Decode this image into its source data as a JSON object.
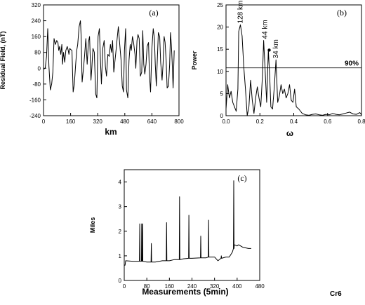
{
  "figure_label": "Cr6",
  "chart_data": [
    {
      "id": "a",
      "type": "line",
      "panel_label": "(a)",
      "xlabel": "km",
      "ylabel": "Residual Field, (nT)",
      "xlim": [
        0,
        800
      ],
      "ylim": [
        -240,
        320
      ],
      "xticks": [
        0,
        160,
        320,
        480,
        640,
        800
      ],
      "yticks": [
        -240,
        -160,
        -80,
        0,
        80,
        160,
        240,
        320
      ],
      "ytick_labels": [
        "-240",
        "-160",
        "-80",
        "0",
        "80",
        "160",
        "240",
        "320"
      ],
      "series": [
        {
          "x": [
            0,
            10,
            18,
            25,
            32,
            40,
            48,
            55,
            62,
            70,
            78,
            85,
            90,
            95,
            102,
            108,
            112,
            118,
            125,
            132,
            140,
            146,
            150,
            155,
            160,
            168,
            175,
            182,
            190,
            196,
            202,
            210,
            218,
            222,
            228,
            235,
            242,
            250,
            258,
            265,
            272,
            280,
            285,
            292,
            300,
            308,
            315,
            322,
            330,
            336,
            342,
            350,
            358,
            365,
            372,
            380,
            388,
            395,
            402,
            408,
            415,
            420,
            428,
            435,
            442,
            450,
            458,
            465,
            472,
            478,
            485,
            490,
            498,
            505,
            512,
            518,
            525,
            532,
            540,
            545,
            552,
            558,
            565,
            572,
            580,
            586,
            592,
            598,
            605,
            612,
            620,
            626,
            632,
            640,
            648,
            655,
            660,
            666,
            672,
            678,
            686,
            692,
            700,
            706,
            712,
            718,
            724,
            730,
            738,
            745,
            750,
            755,
            760,
            765,
            772
          ],
          "y": [
            -5,
            0,
            60,
            200,
            10,
            -110,
            -80,
            -20,
            150,
            120,
            140,
            130,
            90,
            110,
            70,
            120,
            20,
            80,
            30,
            90,
            110,
            90,
            70,
            100,
            95,
            90,
            -120,
            -80,
            20,
            90,
            120,
            210,
            240,
            160,
            -70,
            -10,
            60,
            150,
            20,
            130,
            160,
            -60,
            0,
            100,
            80,
            -130,
            -150,
            160,
            200,
            40,
            -80,
            100,
            140,
            10,
            -40,
            70,
            60,
            120,
            80,
            140,
            -20,
            20,
            90,
            150,
            210,
            120,
            40,
            -90,
            -120,
            90,
            200,
            -110,
            -150,
            40,
            120,
            90,
            160,
            130,
            70,
            0,
            140,
            170,
            150,
            -40,
            -20,
            190,
            20,
            -30,
            20,
            110,
            130,
            -40,
            -120,
            100,
            200,
            150,
            20,
            -90,
            40,
            180,
            160,
            30,
            -60,
            20,
            160,
            130,
            40,
            -100,
            -90,
            20,
            180,
            120,
            30,
            -100,
            90
          ]
        }
      ]
    },
    {
      "id": "b",
      "type": "line",
      "panel_label": "(b)",
      "xlabel": "ω",
      "ylabel": "Power",
      "xlim": [
        0,
        0.8
      ],
      "ylim": [
        0,
        25
      ],
      "xticks": [
        0,
        0.2,
        0.4,
        0.6,
        0.8
      ],
      "xtick_labels": [
        "0.0",
        "0.2",
        "0.4",
        "0.6",
        "0.8"
      ],
      "yticks": [
        0,
        5,
        10,
        15,
        20,
        25
      ],
      "threshold": {
        "value": 10.8,
        "label": "90%"
      },
      "annotations": [
        {
          "x": 0.085,
          "y": 20.5,
          "text": "128 km"
        },
        {
          "x": 0.23,
          "y": 17.0,
          "text": "44 km"
        },
        {
          "x": 0.295,
          "y": 12.6,
          "text": "34 km"
        }
      ],
      "marker": {
        "x": 0.255,
        "y": 14.8
      },
      "series": [
        {
          "x": [
            0.0,
            0.01,
            0.02,
            0.03,
            0.04,
            0.05,
            0.06,
            0.07,
            0.075,
            0.085,
            0.095,
            0.105,
            0.115,
            0.125,
            0.135,
            0.145,
            0.155,
            0.165,
            0.175,
            0.185,
            0.195,
            0.205,
            0.215,
            0.222,
            0.23,
            0.24,
            0.25,
            0.258,
            0.265,
            0.275,
            0.285,
            0.295,
            0.305,
            0.315,
            0.325,
            0.335,
            0.345,
            0.355,
            0.365,
            0.375,
            0.385,
            0.395,
            0.405,
            0.415,
            0.43,
            0.45,
            0.47,
            0.49,
            0.51,
            0.53,
            0.55,
            0.57,
            0.59,
            0.61,
            0.63,
            0.65,
            0.67,
            0.69,
            0.71,
            0.73,
            0.75,
            0.77,
            0.79,
            0.8
          ],
          "y": [
            1.5,
            7.0,
            4.0,
            5.5,
            3.0,
            2.0,
            1.0,
            6.0,
            19.0,
            20.5,
            18.0,
            11.0,
            6.0,
            0.0,
            2.0,
            8.0,
            3.5,
            0.5,
            4.0,
            6.5,
            4.0,
            2.0,
            9.0,
            17.0,
            11.0,
            3.0,
            14.8,
            9.0,
            2.0,
            1.5,
            6.5,
            12.6,
            3.0,
            4.5,
            7.0,
            5.0,
            6.0,
            4.0,
            5.0,
            7.0,
            3.5,
            3.0,
            6.0,
            2.0,
            1.5,
            0.5,
            0.2,
            0.1,
            0.3,
            0.4,
            0.2,
            0.1,
            0.3,
            0.2,
            0.5,
            0.3,
            0.2,
            0.4,
            0.6,
            0.8,
            0.4,
            0.3,
            0.7,
            0.2
          ]
        }
      ]
    },
    {
      "id": "c",
      "type": "line",
      "panel_label": "(c)",
      "xlabel": "Measurements (5min)",
      "ylabel": "Miles",
      "xlim": [
        0,
        480
      ],
      "ylim": [
        0,
        4.5
      ],
      "xticks": [
        0,
        80,
        160,
        240,
        320,
        400,
        480
      ],
      "yticks": [
        0,
        1,
        2,
        3,
        4
      ],
      "series": [
        {
          "x": [
            0,
            3,
            5,
            30,
            54,
            55,
            56,
            61,
            62,
            63,
            64,
            65,
            66,
            80,
            95,
            96,
            97,
            110,
            135,
            149,
            150,
            151,
            160,
            178,
            195,
            196,
            197,
            210,
            228,
            229,
            230,
            240,
            270,
            271,
            272,
            290,
            298,
            299,
            300,
            320,
            332,
            343,
            344,
            345,
            360,
            372,
            383,
            387,
            388,
            389,
            390,
            400,
            405,
            420,
            440,
            445,
            450
          ],
          "y": [
            0.62,
            0.62,
            0.8,
            0.78,
            0.78,
            2.3,
            0.78,
            0.78,
            2.3,
            0.78,
            0.78,
            2.3,
            0.78,
            0.75,
            0.75,
            1.5,
            0.75,
            0.75,
            0.8,
            0.8,
            2.35,
            0.8,
            0.8,
            0.85,
            0.85,
            3.4,
            0.85,
            0.88,
            0.9,
            2.65,
            0.9,
            0.9,
            0.92,
            1.8,
            0.92,
            0.92,
            0.95,
            2.45,
            0.95,
            0.95,
            0.8,
            0.9,
            1.0,
            0.9,
            0.95,
            0.95,
            1.15,
            1.3,
            4.05,
            1.3,
            1.45,
            1.4,
            1.45,
            1.35,
            1.3,
            1.3,
            1.3
          ]
        }
      ]
    }
  ]
}
